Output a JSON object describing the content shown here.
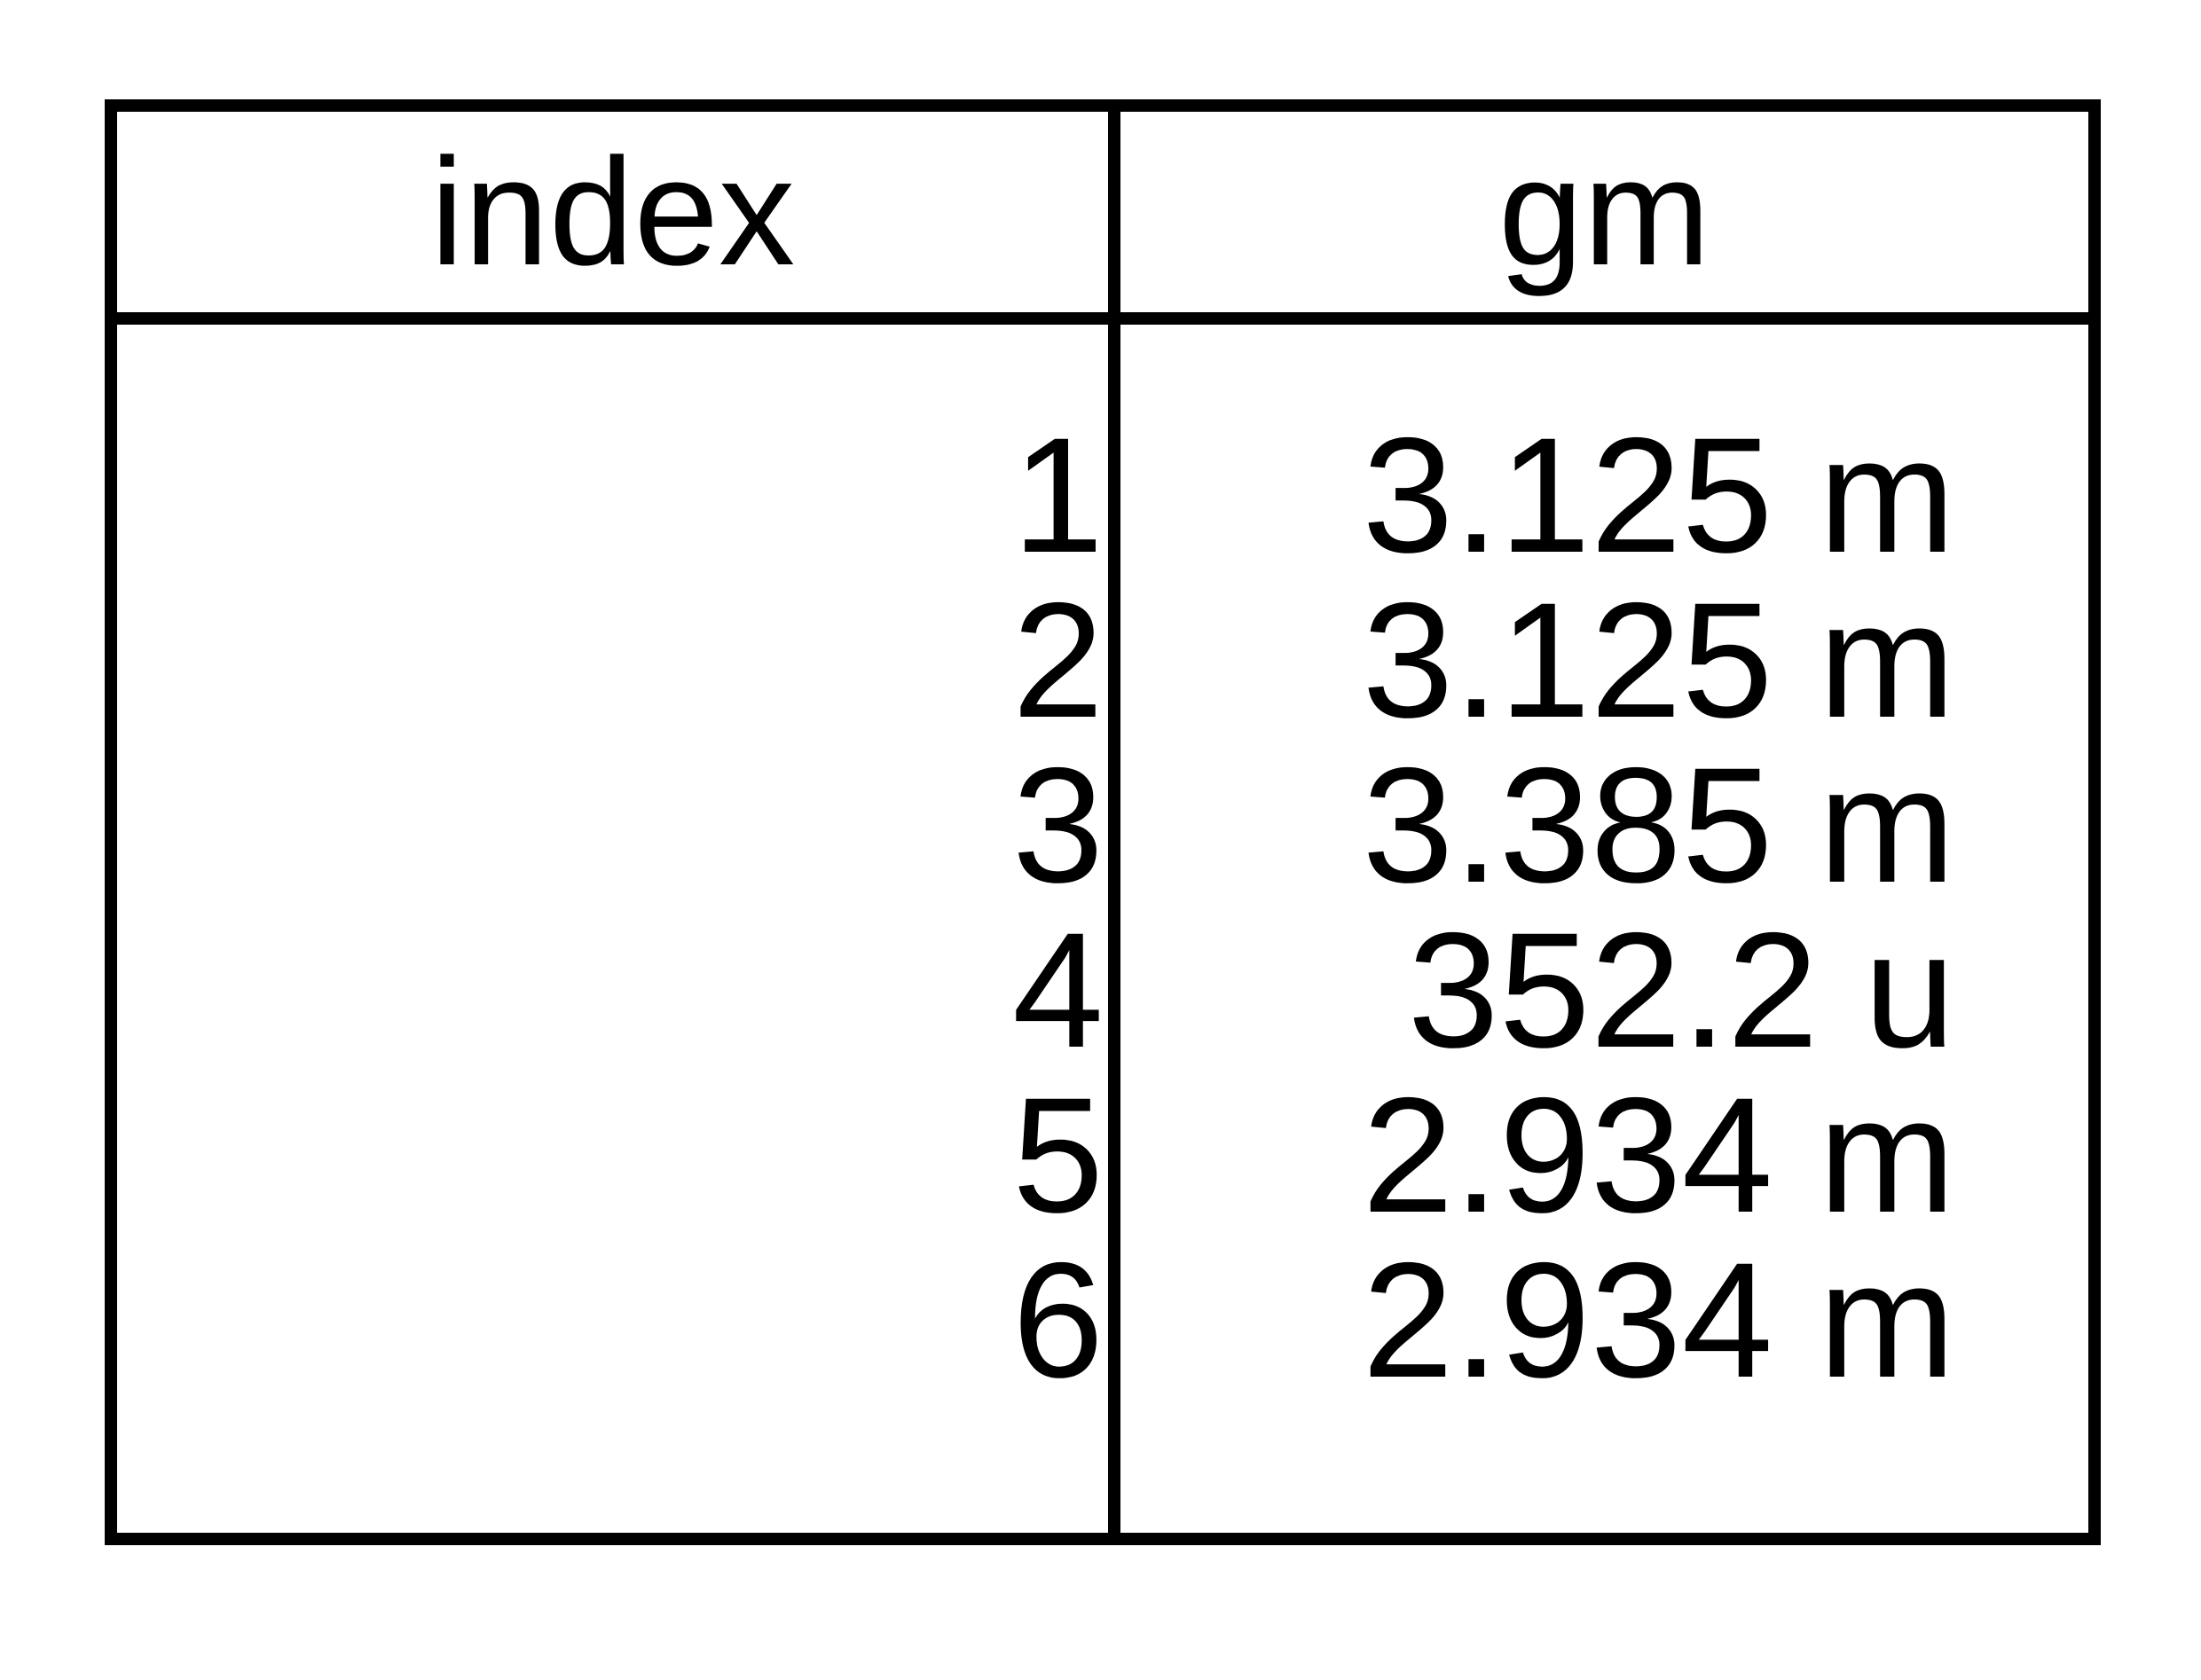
{
  "table": {
    "columns": [
      "index",
      "gm"
    ],
    "rows": [
      {
        "index": "1",
        "gm": "3.125 m"
      },
      {
        "index": "2",
        "gm": "3.125 m"
      },
      {
        "index": "3",
        "gm": "3.385 m"
      },
      {
        "index": "4",
        "gm": "352.2 u"
      },
      {
        "index": "5",
        "gm": "2.934 m"
      },
      {
        "index": "6",
        "gm": "2.934 m"
      }
    ]
  }
}
